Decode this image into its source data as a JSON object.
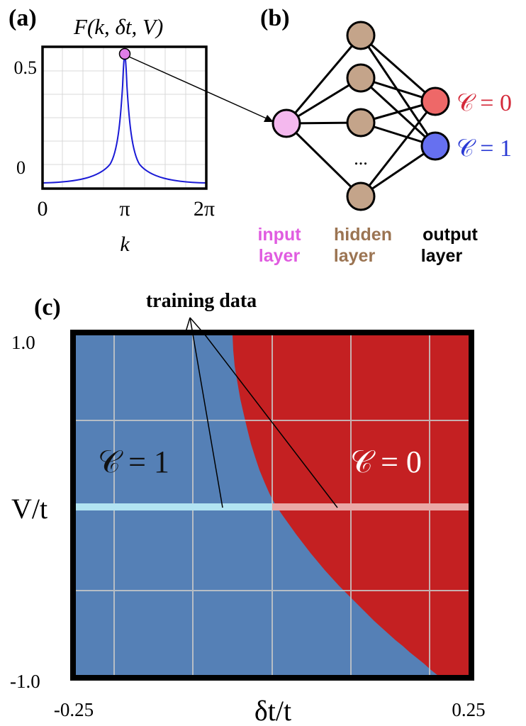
{
  "panel_a": {
    "label": "(a)",
    "title": "F(k, δt, V)",
    "xlabel": "k",
    "x_ticks": [
      "0",
      "π",
      "2π"
    ],
    "y_ticks": [
      "0.5",
      "0"
    ],
    "curve_color": "#1a1ad6",
    "highlight_color": "#e07de8"
  },
  "panel_b": {
    "label": "(b)",
    "ellipsis": "...",
    "input_label_line1": "input",
    "input_label_line2": "layer",
    "hidden_label_line1": "hidden",
    "hidden_label_line2": "layer",
    "output_label_line1": "output",
    "output_label_line2": "layer",
    "output_0_label": "𝒞 = 0",
    "output_1_label": "𝒞 = 1",
    "colors": {
      "input": "#f4b8ee",
      "hidden": "#c4a48a",
      "output_0": "#ee6868",
      "output_1": "#6670f0",
      "input_text": "#e05ce0",
      "hidden_text": "#9b7452",
      "output_0_text": "#d42a3a",
      "output_1_text": "#2a3ad4"
    }
  },
  "panel_c": {
    "label": "(c)",
    "annotation": "training data",
    "ylabel": "V/t",
    "xlabel": "δt/t",
    "y_tick_top": "1.0",
    "y_tick_bottom": "-1.0",
    "x_tick_left": "-0.25",
    "x_tick_right": "0.25",
    "region_left_label": "𝒞 = 1",
    "region_right_label": "𝒞 = 0",
    "colors": {
      "phase_1": "#5580b6",
      "phase_0": "#c42022",
      "train_1": "#b2e4f2",
      "train_0": "#eaa8a6"
    }
  }
}
